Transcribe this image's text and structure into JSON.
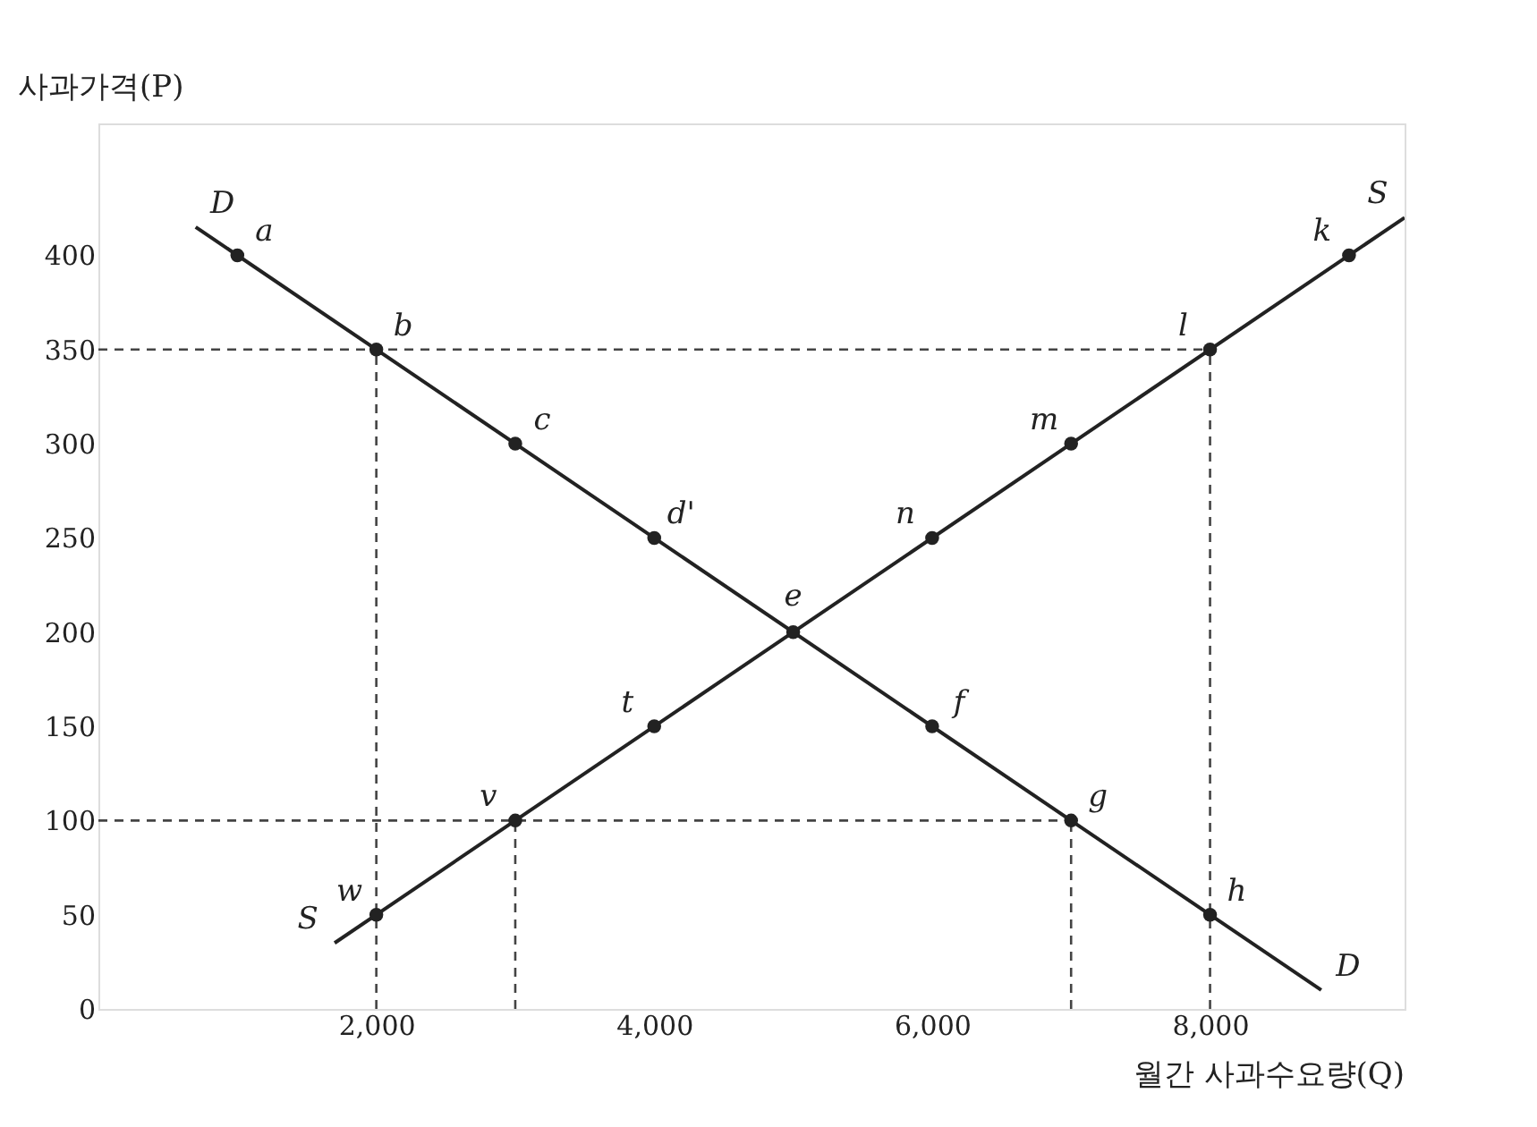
{
  "chart_data": {
    "type": "line",
    "ylabel": "사과가격(P)",
    "xlabel": "월간 사과수요량(Q)",
    "xlim": [
      0,
      9400
    ],
    "ylim": [
      0,
      470
    ],
    "xticks": [
      {
        "value": 2000,
        "label": "2,000"
      },
      {
        "value": 4000,
        "label": "4,000"
      },
      {
        "value": 6000,
        "label": "6,000"
      },
      {
        "value": 8000,
        "label": "8,000"
      }
    ],
    "yticks": [
      0,
      50,
      100,
      150,
      200,
      250,
      300,
      350,
      400
    ],
    "grid": false,
    "series": [
      {
        "color": "#222222",
        "line_style": "solid",
        "x": [
          700,
          8800
        ],
        "values": [
          415,
          10
        ]
      },
      {
        "color": "#222222",
        "line_style": "solid",
        "x": [
          1700,
          9400
        ],
        "values": [
          35,
          420
        ]
      },
      {
        "type": "line",
        "color": "#444444",
        "line_style": "dashed",
        "x": [
          0,
          8000
        ],
        "values": [
          350,
          350
        ]
      },
      {
        "type": "line",
        "color": "#444444",
        "line_style": "dashed",
        "x": [
          0,
          7000
        ],
        "values": [
          100,
          100
        ]
      },
      {
        "type": "line",
        "color": "#444444",
        "line_style": "dashed",
        "x": [
          2000,
          2000
        ],
        "values": [
          0,
          350
        ]
      },
      {
        "type": "line",
        "color": "#444444",
        "line_style": "dashed",
        "x": [
          3000,
          3000
        ],
        "values": [
          0,
          100
        ]
      },
      {
        "type": "line",
        "color": "#444444",
        "line_style": "dashed",
        "x": [
          7000,
          7000
        ],
        "values": [
          0,
          100
        ]
      },
      {
        "type": "line",
        "color": "#444444",
        "line_style": "dashed",
        "x": [
          8000,
          8000
        ],
        "values": [
          0,
          350
        ]
      },
      {
        "type": "scatter",
        "color": "#222222",
        "marker": "circle",
        "x": [
          1000,
          2000,
          3000,
          4000,
          5000,
          6000,
          7000,
          8000
        ],
        "values": [
          400,
          350,
          300,
          250,
          200,
          150,
          100,
          50
        ]
      },
      {
        "type": "scatter",
        "color": "#222222",
        "marker": "circle",
        "x": [
          2000,
          3000,
          4000,
          6000,
          7000,
          8000,
          9000
        ],
        "values": [
          50,
          100,
          150,
          250,
          300,
          350,
          400
        ]
      }
    ],
    "annotations": [
      {
        "text": "a",
        "x": 1000,
        "y": 400
      },
      {
        "text": "b",
        "x": 2000,
        "y": 350
      },
      {
        "text": "c",
        "x": 3000,
        "y": 300
      },
      {
        "text": "d'",
        "x": 4000,
        "y": 250
      },
      {
        "text": "e",
        "x": 5000,
        "y": 200
      },
      {
        "text": "f",
        "x": 6000,
        "y": 150
      },
      {
        "text": "g",
        "x": 7000,
        "y": 100
      },
      {
        "text": "h",
        "x": 8000,
        "y": 50
      },
      {
        "text": "w",
        "x": 2000,
        "y": 50
      },
      {
        "text": "v",
        "x": 3000,
        "y": 100
      },
      {
        "text": "t",
        "x": 4000,
        "y": 150
      },
      {
        "text": "n",
        "x": 6000,
        "y": 250
      },
      {
        "text": "m",
        "x": 7000,
        "y": 300
      },
      {
        "text": "l",
        "x": 8000,
        "y": 350
      },
      {
        "text": "k",
        "x": 9000,
        "y": 400
      },
      {
        "text": "D",
        "x": 700,
        "y": 415
      },
      {
        "text": "D",
        "x": 8800,
        "y": 10
      },
      {
        "text": "S",
        "x": 1700,
        "y": 35
      },
      {
        "text": "S",
        "x": 9400,
        "y": 420
      }
    ]
  }
}
